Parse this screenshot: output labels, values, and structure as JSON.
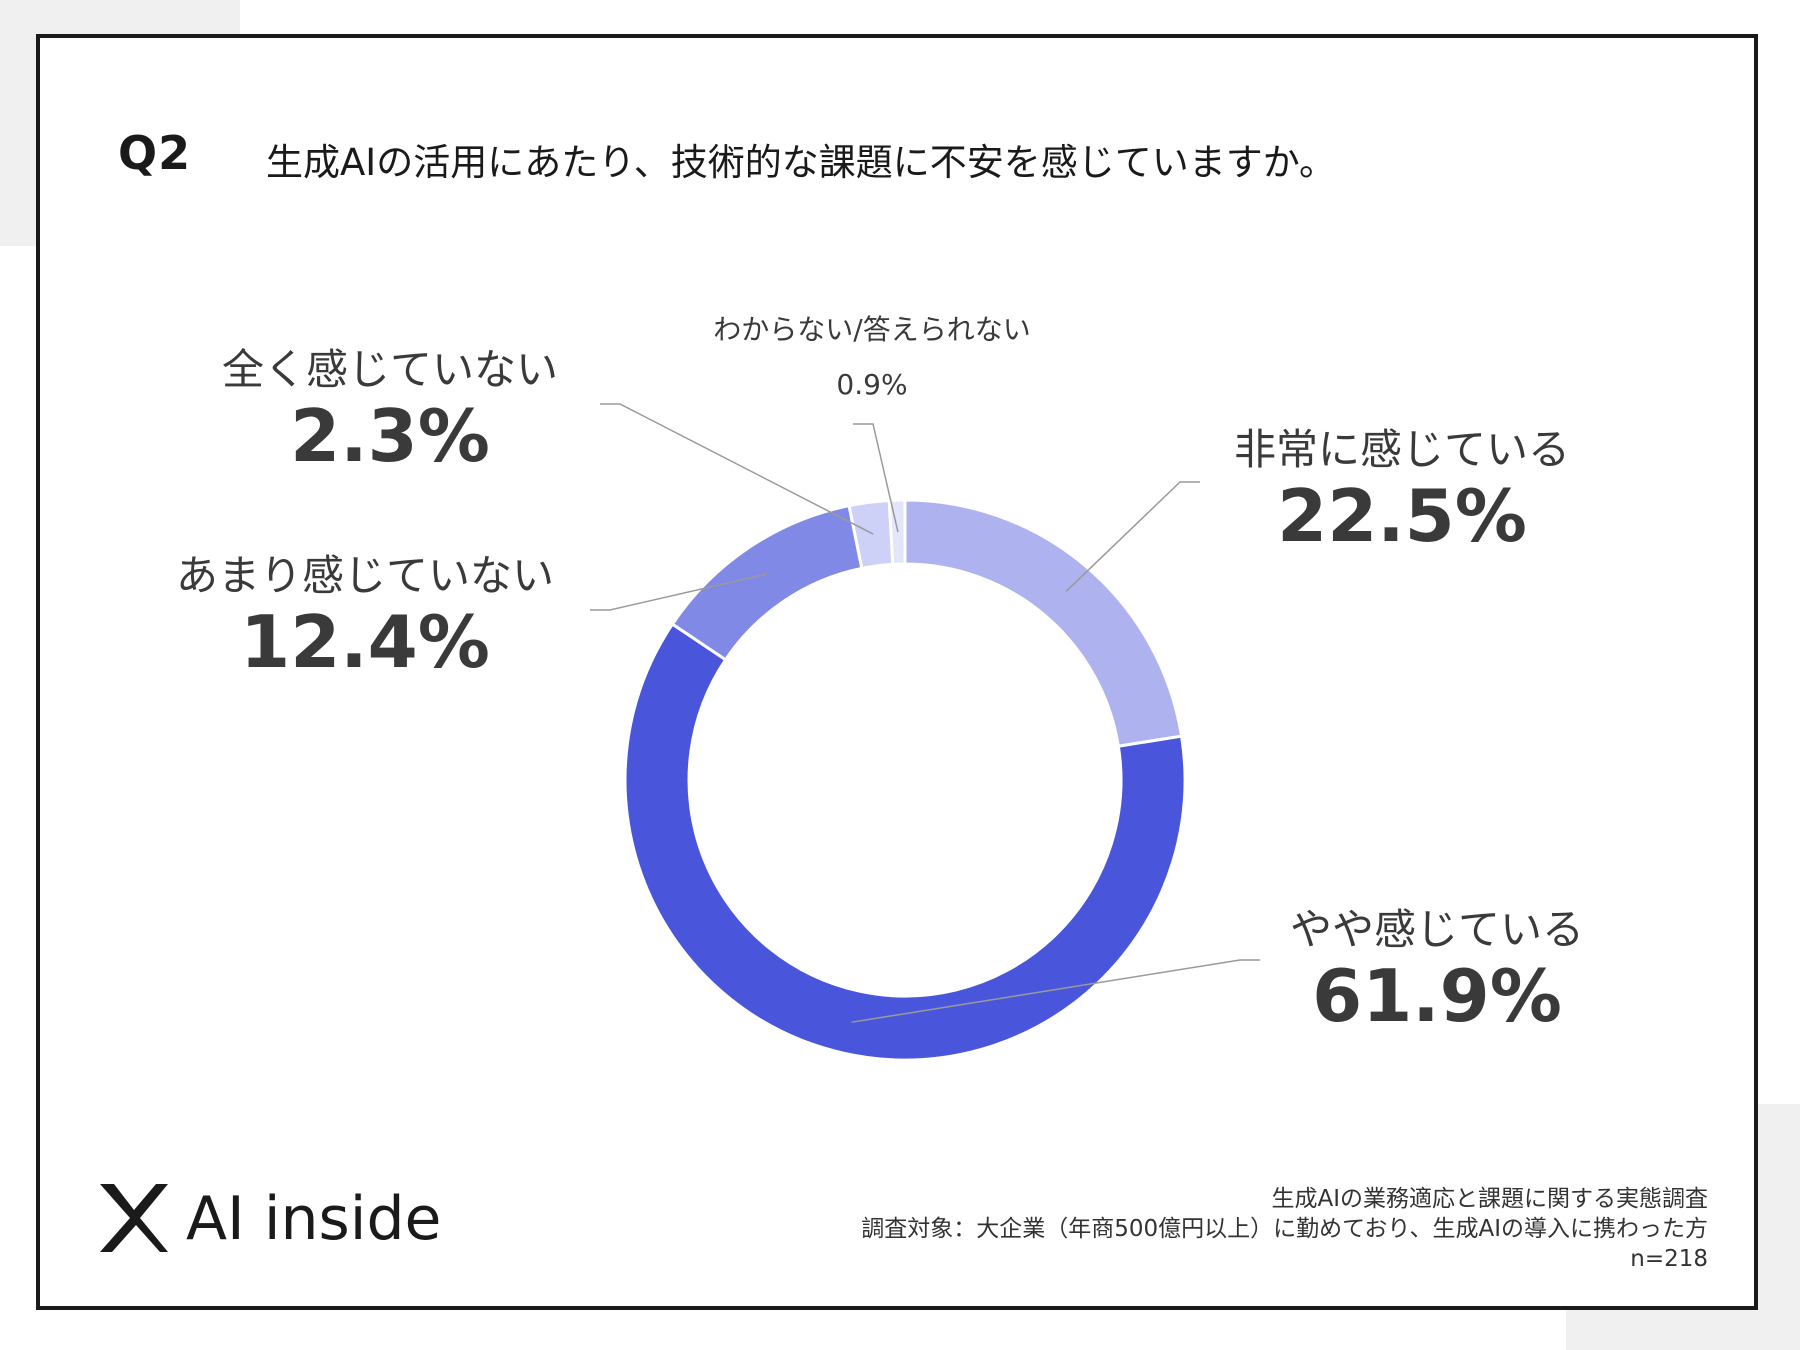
{
  "question": {
    "number": "Q2",
    "title": "生成AIの活用にあたり、技術的な課題に不安を感じていますか。"
  },
  "chart_data": {
    "type": "pie",
    "categories": [
      "非常に感じている",
      "やや感じている",
      "あまり感じていない",
      "全く感じていない",
      "わからない/答えられない"
    ],
    "values": [
      22.5,
      61.9,
      12.4,
      2.3,
      0.9
    ],
    "value_labels": [
      "22.5%",
      "61.9%",
      "12.4%",
      "2.3%",
      "0.9%"
    ],
    "colors": [
      "#aeb3f0",
      "#4956dc",
      "#808ae6",
      "#cdd0f7",
      "#e3e5fa"
    ]
  },
  "brand": {
    "name": "AI inside",
    "logo_icon": "x-logo-icon"
  },
  "footer": {
    "survey_name": "生成AIの業務適応と課題に関する実態調査",
    "target": "調査対象：大企業（年商500億円以上）に勤めており、生成AIの導入に携わった方",
    "sample": "n=218"
  }
}
